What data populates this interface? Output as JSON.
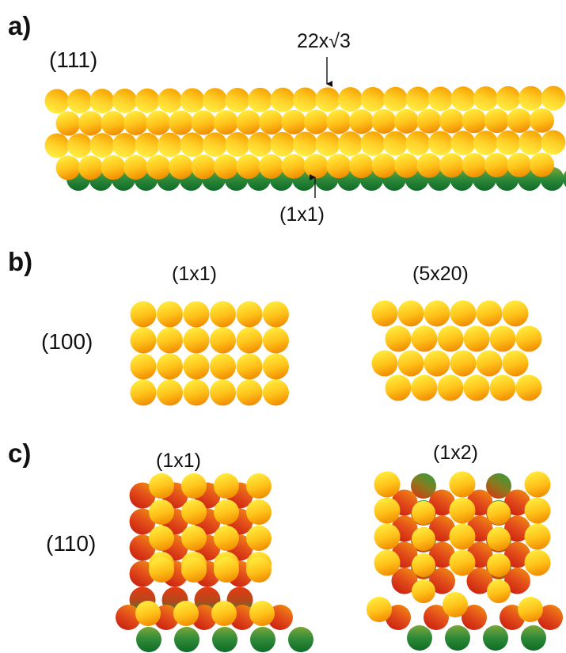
{
  "panels": {
    "a": {
      "letter": "a)",
      "face": "(111)",
      "top_annotation": "22x√3",
      "bottom_annotation": "(1x1)"
    },
    "b": {
      "letter": "b)",
      "face": "(100)",
      "left_reconstruction": "(1x1)",
      "right_reconstruction": "(5x20)"
    },
    "c": {
      "letter": "c)",
      "face": "(110)",
      "left_reconstruction": "(1x1)",
      "right_reconstruction": "(1x2)"
    }
  },
  "atom_colors": {
    "gold_light": "#ffea3a",
    "gold_dark": "#f08a00",
    "red": "#e43a12",
    "green": "#1f8a3a"
  }
}
